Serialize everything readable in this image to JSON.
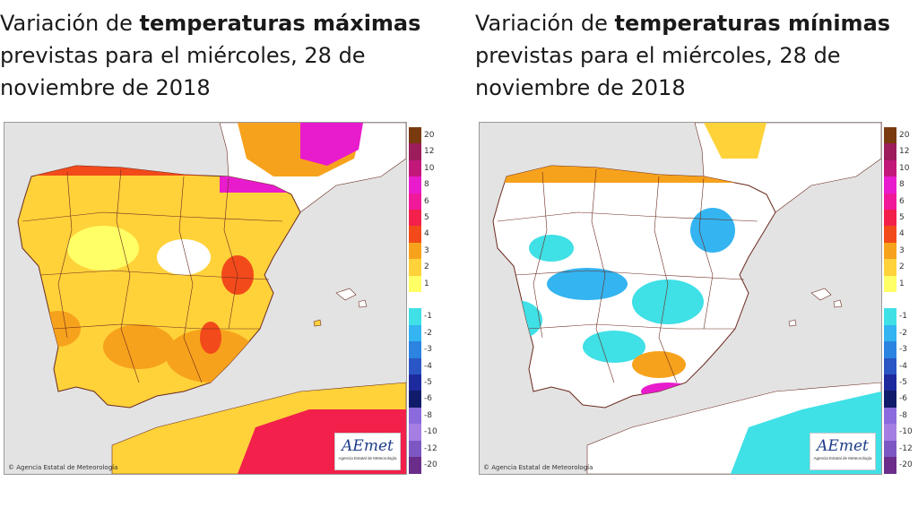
{
  "panels": [
    {
      "title_prefix": "Variación de ",
      "title_bold": "temperaturas máximas",
      "title_suffix": " previstas para el miércoles, 28 de noviembre de 2018",
      "copyright": "© Agencia Estatal de Meteorología",
      "logo": "AEmet",
      "logo_sub": "Agencia Estatal de Meteorología",
      "colors": {
        "sea": "#e3e3e3",
        "land_base": "#ffd23a",
        "border": "#6b2a1f"
      }
    },
    {
      "title_prefix": "Variación de ",
      "title_bold": "temperaturas mínimas",
      "title_suffix": " previstas para el miércoles, 28 de noviembre de 2018",
      "copyright": "© Agencia Estatal de Meteorología",
      "logo": "AEmet",
      "logo_sub": "Agencia Estatal de Meteorología",
      "colors": {
        "sea": "#e3e3e3",
        "land_base": "#ffffff",
        "border": "#6b2a1f"
      }
    }
  ],
  "legend": [
    {
      "label": "20",
      "color": "#7a3a10"
    },
    {
      "label": "12",
      "color": "#9c1c5c"
    },
    {
      "label": "10",
      "color": "#c2187a"
    },
    {
      "label": "8",
      "color": "#e81ccc"
    },
    {
      "label": "6",
      "color": "#f0199a"
    },
    {
      "label": "5",
      "color": "#f2204a"
    },
    {
      "label": "4",
      "color": "#f24a1a"
    },
    {
      "label": "3",
      "color": "#f7a21c"
    },
    {
      "label": "2",
      "color": "#ffd23a"
    },
    {
      "label": "1",
      "color": "#ffff66"
    },
    {
      "label": "",
      "color": "#ffffff"
    },
    {
      "label": "-1",
      "color": "#3fe0e6"
    },
    {
      "label": "-2",
      "color": "#34b4f0"
    },
    {
      "label": "-3",
      "color": "#2c84e0"
    },
    {
      "label": "-4",
      "color": "#2a55c4"
    },
    {
      "label": "-5",
      "color": "#1d2a9e"
    },
    {
      "label": "-6",
      "color": "#101c6a"
    },
    {
      "label": "-8",
      "color": "#8a6adc"
    },
    {
      "label": "-10",
      "color": "#a57ee4"
    },
    {
      "label": "-12",
      "color": "#7d58c4"
    },
    {
      "label": "-20",
      "color": "#6a2d8a"
    }
  ]
}
